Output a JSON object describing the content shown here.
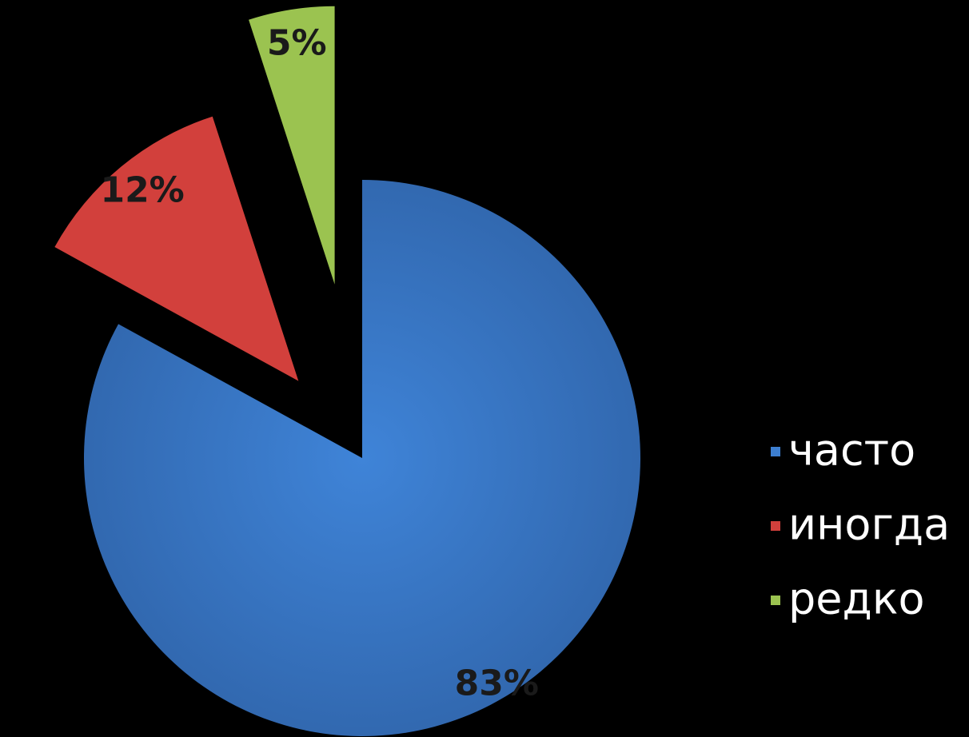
{
  "chart_data": {
    "type": "pie",
    "exploded": true,
    "legend_position": "right",
    "slices": [
      {
        "name": "часто",
        "value": 83,
        "label": "83%",
        "color": "#3d7fd1"
      },
      {
        "name": "иногда",
        "value": 12,
        "label": "12%",
        "color": "#d2403c"
      },
      {
        "name": "редко",
        "value": 5,
        "label": "5%",
        "color": "#9bc350"
      }
    ]
  }
}
